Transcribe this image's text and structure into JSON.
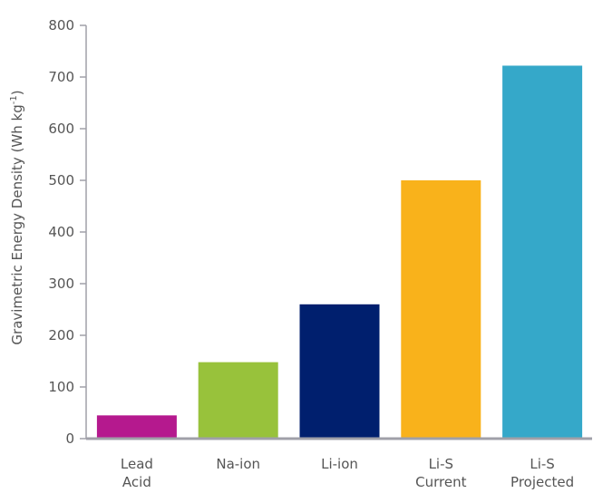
{
  "chart_data": {
    "type": "bar",
    "title": "",
    "xlabel": "",
    "ylabel": "Gravimetric Energy Density (Wh kg",
    "ylabel_superscript": "-1",
    "ylabel_suffix": ")",
    "ylim": [
      0,
      800
    ],
    "yticks": [
      "0",
      "100",
      "200",
      "300",
      "400",
      "500",
      "600",
      "700",
      "800"
    ],
    "grid": false,
    "categories": [
      [
        "Lead",
        "Acid"
      ],
      [
        "Na-ion"
      ],
      [
        "Li-ion"
      ],
      [
        "Li-S",
        "Current"
      ],
      [
        "Li-S",
        "Projected"
      ]
    ],
    "values": [
      45,
      148,
      260,
      500,
      722
    ],
    "colors": [
      "#b5198e",
      "#98c23b",
      "#001f6e",
      "#f9b21b",
      "#35a8c9"
    ],
    "axis_color": "#a0a0a8"
  }
}
